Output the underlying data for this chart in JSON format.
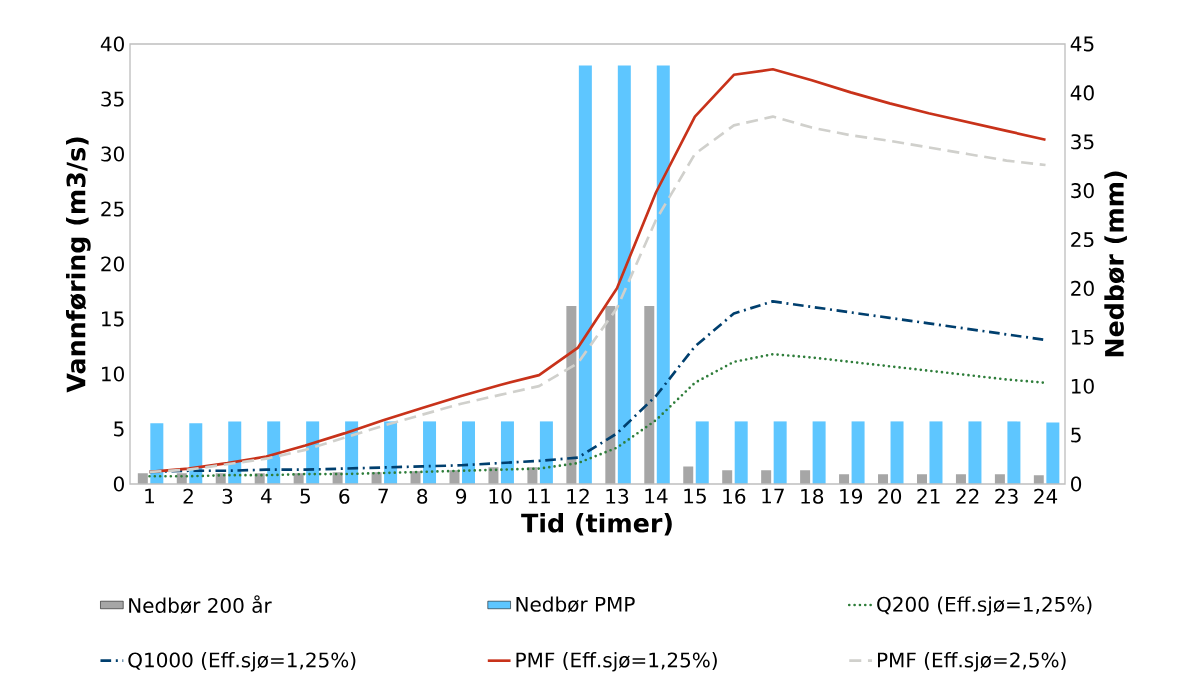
{
  "chart_data": {
    "type": "bar",
    "xlabel": "Tid (timer)",
    "ylabel": "Vannføring (m3/s)",
    "y2label": "Nedbør (mm)",
    "categories": [
      "1",
      "2",
      "3",
      "4",
      "5",
      "6",
      "7",
      "8",
      "9",
      "10",
      "11",
      "12",
      "13",
      "14",
      "15",
      "16",
      "17",
      "18",
      "19",
      "20",
      "21",
      "22",
      "23",
      "24"
    ],
    "series": [
      {
        "name": "Nedbør 200 år",
        "axis": "y2",
        "color": "#a6a6a6",
        "values": [
          1.1,
          1.1,
          1.1,
          1.1,
          1.1,
          1.2,
          1.2,
          1.3,
          1.4,
          1.7,
          1.7,
          18.2,
          18.2,
          18.2,
          1.8,
          1.4,
          1.4,
          1.4,
          1.0,
          1.0,
          1.0,
          1.0,
          1.0,
          0.9
        ]
      },
      {
        "name": "Nedbør PMP",
        "axis": "y2",
        "color": "#5ec6ff",
        "values": [
          6.2,
          6.2,
          6.4,
          6.4,
          6.4,
          6.4,
          6.4,
          6.4,
          6.4,
          6.4,
          6.4,
          42.8,
          42.8,
          42.8,
          6.4,
          6.4,
          6.4,
          6.4,
          6.4,
          6.4,
          6.4,
          6.4,
          6.4,
          6.3
        ]
      },
      {
        "name": "Q200 (Eff.sjø=1,25%)",
        "type": "line",
        "line_style": "dotted",
        "color": "#2e7d3a",
        "values": [
          0.7,
          0.7,
          0.8,
          0.8,
          0.9,
          0.9,
          1.0,
          1.1,
          1.2,
          1.3,
          1.4,
          1.9,
          3.3,
          5.8,
          9.2,
          11.1,
          11.8,
          11.5,
          11.1,
          10.7,
          10.3,
          9.9,
          9.5,
          9.2
        ]
      },
      {
        "name": "Q1000 (Eff.sjø=1,25%)",
        "type": "line",
        "line_style": "dashdot",
        "color": "#003f6e",
        "values": [
          1.1,
          1.2,
          1.2,
          1.3,
          1.3,
          1.4,
          1.5,
          1.6,
          1.7,
          1.9,
          2.1,
          2.4,
          4.6,
          8.0,
          12.5,
          15.5,
          16.6,
          16.1,
          15.6,
          15.1,
          14.6,
          14.1,
          13.6,
          13.1
        ]
      },
      {
        "name": "PMF (Eff.sjø=1,25%)",
        "type": "line",
        "line_style": "solid",
        "color": "#c8321a",
        "values": [
          1.1,
          1.4,
          1.9,
          2.5,
          3.5,
          4.6,
          5.8,
          6.9,
          8.0,
          9.0,
          9.9,
          12.4,
          17.8,
          26.5,
          33.4,
          37.2,
          37.7,
          36.7,
          35.6,
          34.6,
          33.7,
          32.9,
          32.1,
          31.3
        ]
      },
      {
        "name": "PMF (Eff.sjø=2,5%)",
        "type": "line",
        "line_style": "dashed",
        "color": "#d0d0cc",
        "values": [
          1.1,
          1.3,
          1.8,
          2.3,
          3.1,
          4.2,
          5.3,
          6.3,
          7.3,
          8.1,
          8.9,
          11.0,
          16.0,
          24.0,
          30.0,
          32.6,
          33.4,
          32.4,
          31.7,
          31.2,
          30.6,
          30.0,
          29.4,
          29.0
        ]
      }
    ],
    "ylim": [
      0,
      40
    ],
    "yticks": [
      0,
      5,
      10,
      15,
      20,
      25,
      30,
      35,
      40
    ],
    "y2lim": [
      0,
      45
    ],
    "y2ticks": [
      0,
      5,
      10,
      15,
      20,
      25,
      30,
      35,
      40,
      45
    ],
    "grid": false,
    "legend": "bottom",
    "marker": "none"
  }
}
